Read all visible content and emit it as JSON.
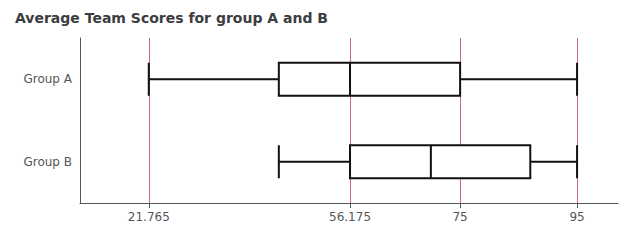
{
  "chart_data": {
    "type": "boxplot",
    "title": "Average Team Scores for group A and B",
    "orientation": "horizontal",
    "categories": [
      "Group A",
      "Group B"
    ],
    "values": [
      [
        21.765,
        44,
        56.175,
        75,
        95
      ],
      [
        44,
        56.175,
        70,
        87,
        95
      ]
    ],
    "color": "#111111",
    "vlines": {
      "values": [
        21.765,
        56.175,
        75,
        95
      ],
      "color": "#cc6688"
    },
    "xlim": [
      10,
      102
    ],
    "xticks": [
      21.765,
      56.175,
      75,
      95
    ],
    "grid": false
  }
}
